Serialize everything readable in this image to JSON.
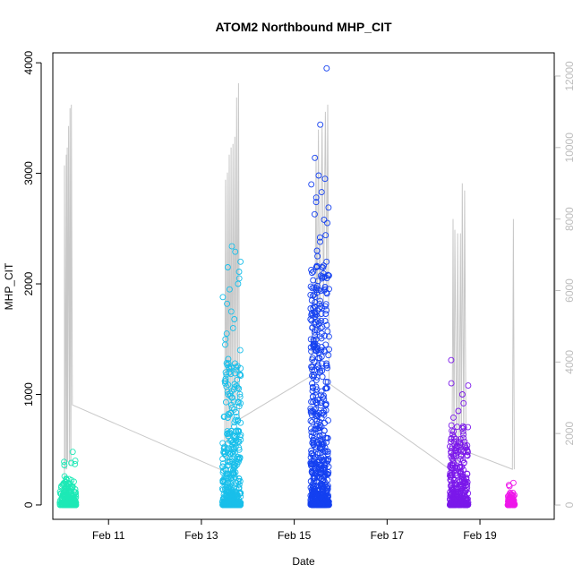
{
  "chart_data": {
    "type": "scatter",
    "title": "ATOM2 Northbound MHP_CIT",
    "xlabel": "Date",
    "ylabel": "MHP_CIT",
    "x_ticks": [
      {
        "value": 11,
        "label": "Feb 11"
      },
      {
        "value": 13,
        "label": "Feb 13"
      },
      {
        "value": 15,
        "label": "Feb 15"
      },
      {
        "value": 17,
        "label": "Feb 17"
      },
      {
        "value": 19,
        "label": "Feb 19"
      }
    ],
    "y_ticks": [
      0,
      1000,
      2000,
      3000,
      4000
    ],
    "y2_ticks": [
      0,
      2000,
      4000,
      6000,
      8000,
      10000,
      12000
    ],
    "xlim": [
      9.8,
      20.6
    ],
    "ylim": [
      -130,
      4090
    ],
    "y2lim": [
      -400,
      12650
    ],
    "grid": false,
    "legend": "none",
    "series": [
      {
        "kind": "points",
        "day_range": [
          9.95,
          10.3
        ],
        "y_min": 0,
        "y_max": 480,
        "count": 220,
        "outliers": [
          480,
          400,
          390,
          380,
          370,
          360
        ],
        "color": "#1de9b6"
      },
      {
        "kind": "points",
        "day_range": [
          13.45,
          13.85
        ],
        "y_min": 0,
        "y_max": 2340,
        "count": 420,
        "outliers": [
          2340,
          2290,
          2200,
          2150,
          2110,
          2050,
          2000,
          1950,
          1880,
          1820,
          1750,
          1680,
          1600,
          1550,
          1500,
          1450,
          1400,
          1320,
          1280,
          1250,
          1200,
          1180,
          1120,
          1060
        ],
        "color": "#19bfea"
      },
      {
        "kind": "points",
        "day_range": [
          15.35,
          15.75
        ],
        "y_min": 0,
        "y_max": 3950,
        "count": 600,
        "outliers": [
          3950,
          3440,
          3140,
          2980,
          2950,
          2900,
          2830,
          2780,
          2740,
          2690,
          2630,
          2580,
          2550,
          2440,
          2420,
          2380,
          2300,
          2250,
          2200,
          2150,
          2100,
          2050,
          1980,
          1900,
          1850,
          1780,
          1720,
          1650,
          1600,
          1550,
          1500,
          1450,
          1400,
          1330,
          1280,
          1250,
          1200
        ],
        "color": "#1440f0"
      },
      {
        "kind": "points",
        "day_range": [
          18.35,
          18.75
        ],
        "y_min": 0,
        "y_max": 1310,
        "count": 330,
        "outliers": [
          1310,
          1100,
          1080,
          1000,
          920,
          850,
          790,
          720
        ],
        "color": "#7b18ea"
      },
      {
        "kind": "points",
        "day_range": [
          19.6,
          19.75
        ],
        "y_min": 0,
        "y_max": 200,
        "count": 90,
        "outliers": [
          200,
          180,
          170
        ],
        "color": "#ee16ea"
      }
    ],
    "secondary_line": {
      "axis": "right",
      "color": "#c8c8c8",
      "points": [
        [
          10.05,
          0
        ],
        [
          10.05,
          9500
        ],
        [
          10.07,
          1000
        ],
        [
          10.09,
          9800
        ],
        [
          10.1,
          1000
        ],
        [
          10.11,
          10000
        ],
        [
          10.12,
          1200
        ],
        [
          10.14,
          10600
        ],
        [
          10.16,
          1100
        ],
        [
          10.17,
          11100
        ],
        [
          10.19,
          1200
        ],
        [
          10.2,
          11200
        ],
        [
          10.22,
          2800
        ],
        [
          13.75,
          800
        ],
        [
          13.5,
          1500
        ],
        [
          13.52,
          9100
        ],
        [
          13.54,
          1200
        ],
        [
          13.56,
          9300
        ],
        [
          13.58,
          1800
        ],
        [
          13.6,
          9800
        ],
        [
          13.62,
          2000
        ],
        [
          13.64,
          10000
        ],
        [
          13.66,
          2200
        ],
        [
          13.68,
          10100
        ],
        [
          13.7,
          2800
        ],
        [
          13.72,
          10300
        ],
        [
          13.74,
          2600
        ],
        [
          13.76,
          11400
        ],
        [
          13.78,
          2900
        ],
        [
          13.8,
          11800
        ],
        [
          13.82,
          2400
        ],
        [
          15.35,
          3600
        ],
        [
          15.45,
          6000
        ],
        [
          15.47,
          9800
        ],
        [
          15.49,
          4000
        ],
        [
          15.52,
          10500
        ],
        [
          15.55,
          5000
        ],
        [
          15.6,
          10600
        ],
        [
          15.63,
          5600
        ],
        [
          15.67,
          11000
        ],
        [
          15.7,
          6000
        ],
        [
          15.72,
          11200
        ],
        [
          15.75,
          3400
        ],
        [
          18.35,
          1000
        ],
        [
          18.4,
          1300
        ],
        [
          18.42,
          8000
        ],
        [
          18.44,
          1200
        ],
        [
          18.46,
          7700
        ],
        [
          18.5,
          1200
        ],
        [
          18.52,
          7600
        ],
        [
          18.55,
          1400
        ],
        [
          18.58,
          7600
        ],
        [
          18.6,
          1300
        ],
        [
          18.62,
          9000
        ],
        [
          18.65,
          1500
        ],
        [
          18.67,
          8800
        ],
        [
          18.7,
          1500
        ],
        [
          19.7,
          1000
        ],
        [
          19.72,
          8000
        ],
        [
          19.74,
          1000
        ]
      ]
    }
  }
}
